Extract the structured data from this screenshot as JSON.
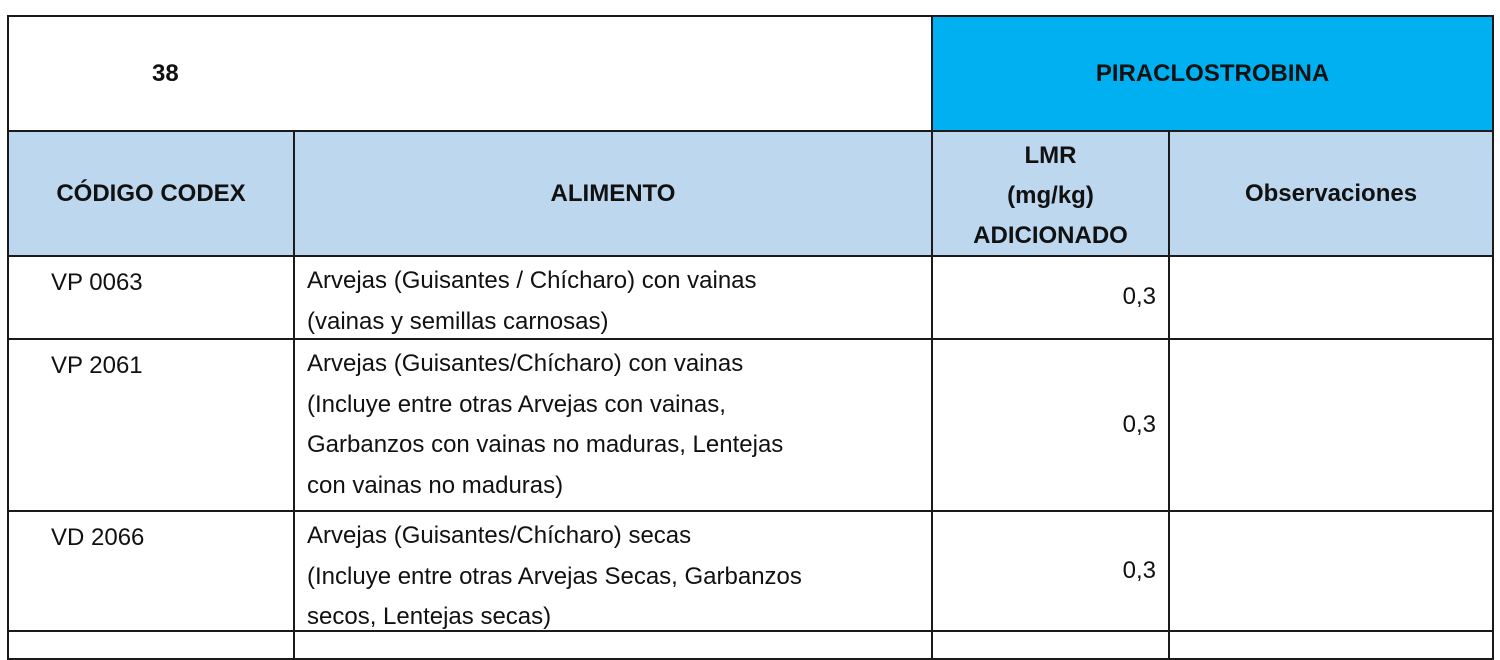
{
  "table": {
    "number": "38",
    "substance": "PIRACLOSTROBINA",
    "headers": {
      "code": "CÓDIGO CODEX",
      "food": "ALIMENTO",
      "lmr_line1": "LMR",
      "lmr_line2": "(mg/kg)",
      "lmr_line3": "ADICIONADO",
      "observations": "Observaciones"
    },
    "rows": [
      {
        "code": "VP 0063",
        "food": [
          "Arvejas (Guisantes / Chícharo) con vainas",
          "(vainas y semillas carnosas)"
        ],
        "lmr": "0,3",
        "observations": ""
      },
      {
        "code": "VP 2061",
        "food": [
          "Arvejas (Guisantes/Chícharo) con vainas",
          "(Incluye entre otras Arvejas con vainas,",
          "Garbanzos con vainas no maduras,  Lentejas",
          "con vainas no maduras)"
        ],
        "lmr": "0,3",
        "observations": ""
      },
      {
        "code": "VD 2066",
        "food": [
          "Arvejas (Guisantes/Chícharo) secas",
          "(Incluye entre otras Arvejas Secas, Garbanzos",
          "secos,  Lentejas secas)"
        ],
        "lmr": "0,3",
        "observations": ""
      }
    ],
    "colors": {
      "substance_bg": "#00B0F0",
      "header_bg": "#BDD7EE"
    }
  }
}
